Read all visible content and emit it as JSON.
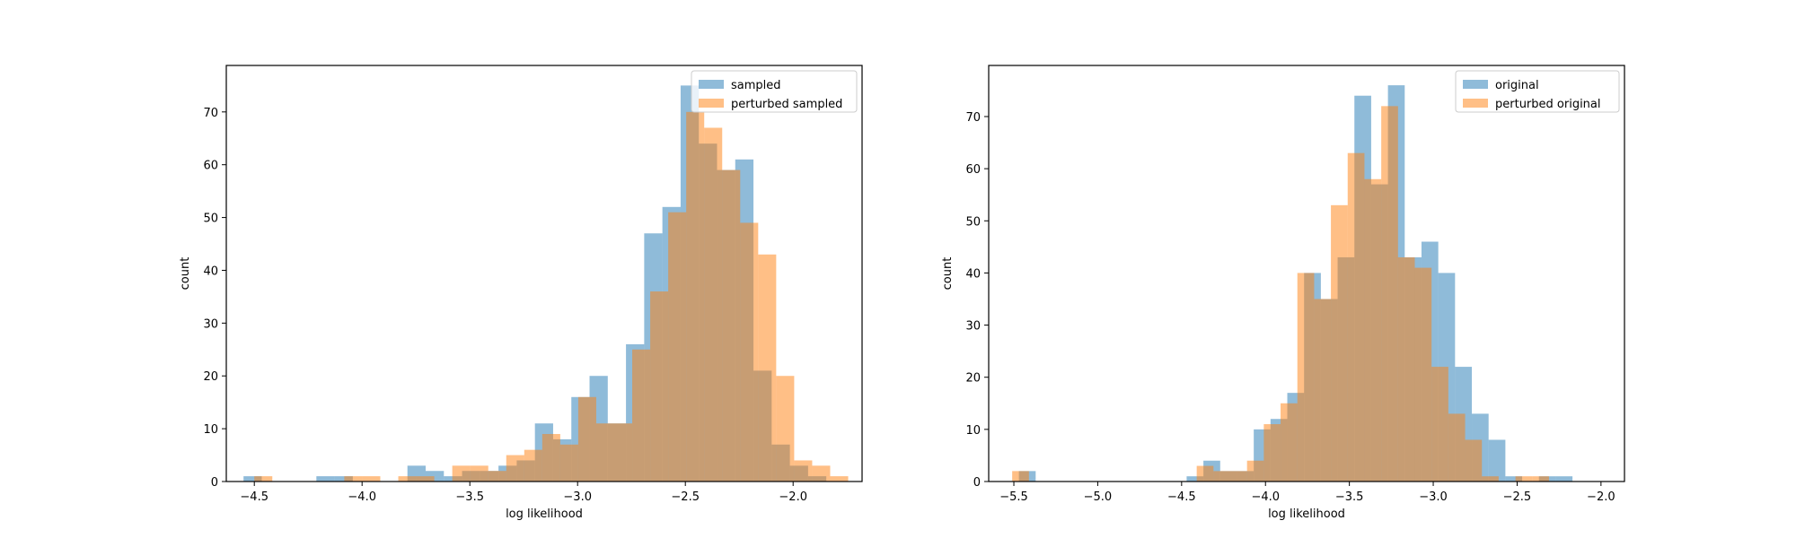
{
  "colors": {
    "series1": "#1f77b4",
    "series2": "#ff7f0e",
    "axes": "#000000",
    "background": "#ffffff"
  },
  "chart_data": [
    {
      "type": "histogram",
      "xlabel": "log likelihood",
      "ylabel": "count",
      "xlim": [
        -4.63,
        -1.68
      ],
      "ylim": [
        0,
        78.8
      ],
      "xticks": [
        -4.5,
        -4.0,
        -3.5,
        -3.0,
        -2.5,
        -2.0
      ],
      "xtick_labels": [
        "−4.5",
        "−4.0",
        "−3.5",
        "−3.0",
        "−2.5",
        "−2.0"
      ],
      "yticks": [
        0,
        10,
        20,
        30,
        40,
        50,
        60,
        70
      ],
      "ytick_labels": [
        "0",
        "10",
        "20",
        "30",
        "40",
        "50",
        "60",
        "70"
      ],
      "legend_position": "top-right",
      "alpha": 0.5,
      "series": [
        {
          "name": "sampled",
          "bin_start": -4.55,
          "bin_width": 0.0845,
          "values": [
            1,
            0,
            0,
            0,
            1,
            1,
            0,
            0,
            0,
            3,
            2,
            1,
            2,
            2,
            3,
            4,
            11,
            8,
            16,
            20,
            11,
            26,
            47,
            52,
            75,
            64,
            59,
            61,
            21,
            7,
            3,
            1
          ]
        },
        {
          "name": "perturbed sampled",
          "bin_start": -4.5,
          "bin_width": 0.0835,
          "values": [
            1,
            0,
            0,
            0,
            0,
            1,
            1,
            0,
            1,
            1,
            0,
            3,
            3,
            2,
            5,
            6,
            9,
            7,
            16,
            11,
            11,
            25,
            36,
            51,
            70,
            67,
            59,
            49,
            43,
            20,
            4,
            3,
            1
          ]
        }
      ]
    },
    {
      "type": "histogram",
      "xlabel": "log likelihood",
      "ylabel": "count",
      "xlim": [
        -5.65,
        -1.86
      ],
      "ylim": [
        0,
        79.8
      ],
      "xticks": [
        -5.5,
        -5.0,
        -4.5,
        -4.0,
        -3.5,
        -3.0,
        -2.5,
        -2.0
      ],
      "xtick_labels": [
        "−5.5",
        "−5.0",
        "−4.5",
        "−4.0",
        "−3.5",
        "−3.0",
        "−2.5",
        "−2.0"
      ],
      "yticks": [
        0,
        10,
        20,
        30,
        40,
        50,
        60,
        70
      ],
      "ytick_labels": [
        "0",
        "10",
        "20",
        "30",
        "40",
        "50",
        "60",
        "70"
      ],
      "legend_position": "top-right",
      "alpha": 0.5,
      "series": [
        {
          "name": "original",
          "bin_start": -5.47,
          "bin_width": 0.1,
          "values": [
            2,
            0,
            0,
            0,
            0,
            0,
            0,
            0,
            0,
            0,
            1,
            4,
            2,
            2,
            10,
            12,
            17,
            40,
            35,
            43,
            74,
            57,
            76,
            43,
            46,
            40,
            22,
            13,
            8,
            1,
            0,
            1,
            1
          ]
        },
        {
          "name": "perturbed original",
          "bin_start": -5.51,
          "bin_width": 0.1,
          "values": [
            2,
            0,
            0,
            0,
            0,
            0,
            0,
            0,
            0,
            0,
            0,
            3,
            2,
            2,
            4,
            11,
            15,
            40,
            35,
            53,
            63,
            58,
            72,
            43,
            41,
            22,
            13,
            8,
            1,
            0,
            1,
            1
          ]
        }
      ]
    }
  ]
}
